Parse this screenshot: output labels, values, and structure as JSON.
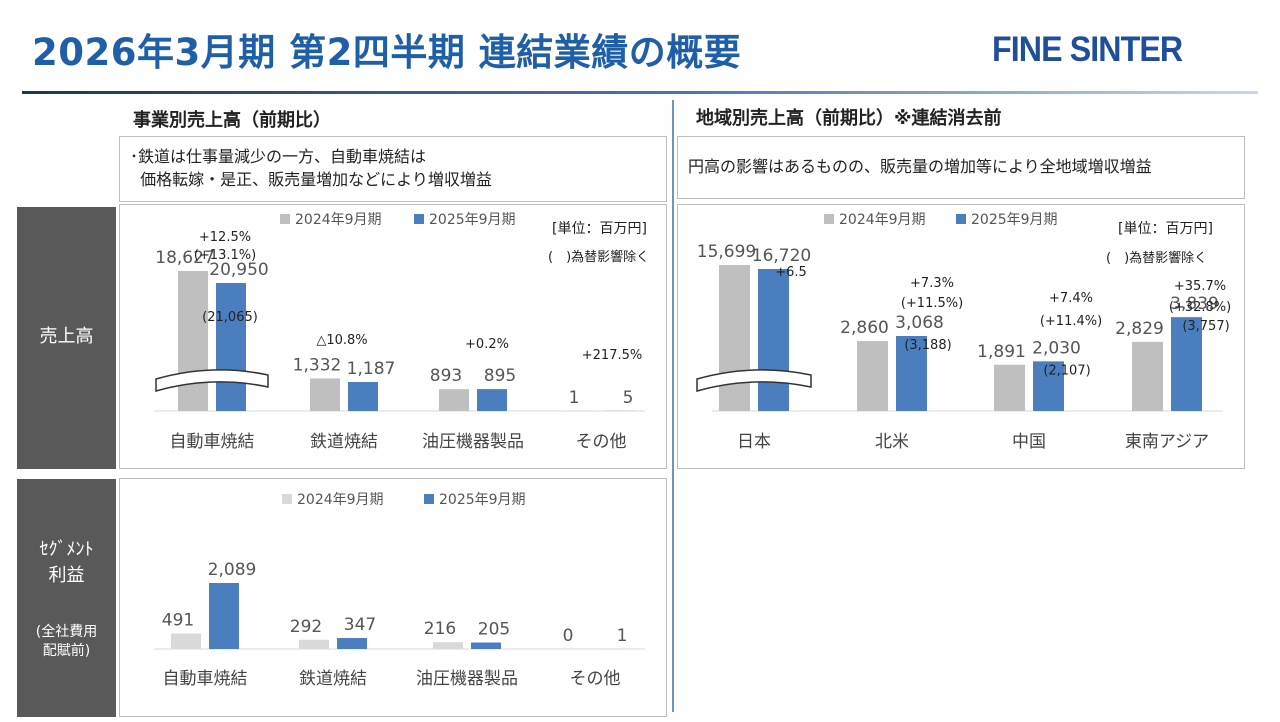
{
  "header": {
    "title": "2026年3月期 第2四半期 連結業績の概要",
    "logo_text": "FINE SINTER"
  },
  "sections": {
    "business_title": "事業別売上高（前期比）",
    "region_title": "地域別売上高（前期比）※連結消去前"
  },
  "notes": {
    "business_line1": "･鉄道は仕事量減少の一方、自動車焼結は",
    "business_line2": "  価格転嫁・是正、販売量増加などにより増収増益",
    "region": "円高の影響はあるものの、販売量の増加等により全地域増収増益"
  },
  "side_labels": {
    "sales": "売上高",
    "segment_line1": "ｾｸﾞﾒﾝﾄ",
    "segment_line2": "利益",
    "segment_note_line1": "(全社費用",
    "segment_note_line2": "配賦前)"
  },
  "colors": {
    "prior": "#bfbfbf",
    "prior_segment": "#d9d9d9",
    "current": "#4a7ebf",
    "title": "#1f5fa8",
    "sidebar": "#595959"
  },
  "chart_data": [
    {
      "id": "business_sales",
      "type": "bar",
      "categories": [
        "自動車焼結",
        "鉄道焼結",
        "油圧機器製品",
        "その他"
      ],
      "series": [
        {
          "name": "2024年9月期",
          "values": [
            18627,
            1332,
            893,
            1
          ]
        },
        {
          "name": "2025年9月期",
          "values": [
            20950,
            1187,
            895,
            5
          ]
        }
      ],
      "value_labels": [
        [
          "18,627",
          "1,332",
          "893",
          "1"
        ],
        [
          "20,950",
          "1,187",
          "895",
          "5"
        ]
      ],
      "fx_excluded": [
        "(21,065)",
        "",
        "",
        ""
      ],
      "change_labels": [
        [
          "+12.5%",
          "(+13.1%)"
        ],
        [
          "△10.8%"
        ],
        [
          "+0.2%"
        ],
        [
          "+217.5%"
        ]
      ],
      "unit": "[単位：百万円]",
      "unit_note": "(　)為替影響除く",
      "axis_break": true,
      "legend_position": "top"
    },
    {
      "id": "region_sales",
      "type": "bar",
      "categories": [
        "日本",
        "北米",
        "中国",
        "東南アジア"
      ],
      "series": [
        {
          "name": "2024年9月期",
          "values": [
            15699,
            2860,
            1891,
            2829
          ]
        },
        {
          "name": "2025年9月期",
          "values": [
            16720,
            3068,
            2030,
            3839
          ]
        }
      ],
      "value_labels": [
        [
          "15,699",
          "2,860",
          "1,891",
          "2,829"
        ],
        [
          "16,720",
          "3,068",
          "2,030",
          "3,839"
        ]
      ],
      "fx_excluded": [
        "",
        "(3,188)",
        "(2,107)",
        "(3,757)"
      ],
      "change_labels": [
        [
          "+6.5"
        ],
        [
          "+7.3%",
          "(+11.5%)"
        ],
        [
          "+7.4%",
          "(+11.4%)"
        ],
        [
          "+35.7%",
          "(+32.8%)"
        ]
      ],
      "unit": "[単位：百万円]",
      "unit_note": "(　)為替影響除く",
      "axis_break": true,
      "legend_position": "top"
    },
    {
      "id": "segment_profit",
      "type": "bar",
      "categories": [
        "自動車焼結",
        "鉄道焼結",
        "油圧機器製品",
        "その他"
      ],
      "series": [
        {
          "name": "2024年9月期",
          "values": [
            491,
            292,
            216,
            0
          ]
        },
        {
          "name": "2025年9月期",
          "values": [
            2089,
            347,
            205,
            1
          ]
        }
      ],
      "value_labels": [
        [
          "491",
          "292",
          "216",
          "0"
        ],
        [
          "2,089",
          "347",
          "205",
          "1"
        ]
      ],
      "legend_position": "top"
    }
  ]
}
